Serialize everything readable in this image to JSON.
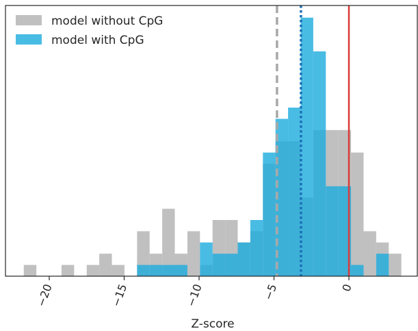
{
  "chart_data": {
    "type": "histogram",
    "xlabel": "Z-score",
    "ylabel": "",
    "xlim": [
      -22.5,
      4.5
    ],
    "ylim": [
      0,
      24
    ],
    "bin_width": 0.84,
    "xticks": [
      -20,
      -15,
      -10,
      -5,
      0
    ],
    "xtick_labels": [
      "−20",
      "−15",
      "−10",
      "−5",
      "0"
    ],
    "legend_position": "top-left",
    "series": [
      {
        "name": "model without CpG",
        "color": "#c0c0c0",
        "bins": [
          {
            "x0": -21.7,
            "count": 1
          },
          {
            "x0": -19.18,
            "count": 1
          },
          {
            "x0": -17.5,
            "count": 1
          },
          {
            "x0": -16.66,
            "count": 2
          },
          {
            "x0": -15.82,
            "count": 1
          },
          {
            "x0": -14.14,
            "count": 4
          },
          {
            "x0": -13.3,
            "count": 2
          },
          {
            "x0": -12.46,
            "count": 6
          },
          {
            "x0": -11.62,
            "count": 2
          },
          {
            "x0": -10.78,
            "count": 4
          },
          {
            "x0": -9.94,
            "count": 1
          },
          {
            "x0": -9.1,
            "count": 5
          },
          {
            "x0": -8.26,
            "count": 5
          },
          {
            "x0": -7.42,
            "count": 3
          },
          {
            "x0": -6.58,
            "count": 4
          },
          {
            "x0": -5.74,
            "count": 10
          },
          {
            "x0": -4.9,
            "count": 12
          },
          {
            "x0": -4.06,
            "count": 12
          },
          {
            "x0": -3.22,
            "count": 7
          },
          {
            "x0": -2.38,
            "count": 13
          },
          {
            "x0": -1.54,
            "count": 13
          },
          {
            "x0": -0.7,
            "count": 13
          },
          {
            "x0": 0.14,
            "count": 11
          },
          {
            "x0": 0.98,
            "count": 4
          },
          {
            "x0": 1.82,
            "count": 3
          },
          {
            "x0": 2.66,
            "count": 2
          }
        ]
      },
      {
        "name": "model with CpG",
        "color": "#1cabdd",
        "bins": [
          {
            "x0": -14.14,
            "count": 1
          },
          {
            "x0": -13.3,
            "count": 1
          },
          {
            "x0": -12.46,
            "count": 1
          },
          {
            "x0": -11.62,
            "count": 1
          },
          {
            "x0": -9.94,
            "count": 3
          },
          {
            "x0": -9.1,
            "count": 2
          },
          {
            "x0": -8.26,
            "count": 2
          },
          {
            "x0": -7.42,
            "count": 3
          },
          {
            "x0": -6.58,
            "count": 5
          },
          {
            "x0": -5.74,
            "count": 11
          },
          {
            "x0": -4.9,
            "count": 14
          },
          {
            "x0": -4.06,
            "count": 15
          },
          {
            "x0": -3.22,
            "count": 23
          },
          {
            "x0": -2.38,
            "count": 20
          },
          {
            "x0": -1.54,
            "count": 8
          },
          {
            "x0": -0.7,
            "count": 8
          },
          {
            "x0": 0.14,
            "count": 1
          },
          {
            "x0": 1.82,
            "count": 2
          }
        ]
      }
    ],
    "vlines": [
      {
        "x": -4.8,
        "style": "dashed",
        "color": "#a8a8a8"
      },
      {
        "x": -3.2,
        "style": "dotted",
        "color": "#1a6fb5"
      },
      {
        "x": 0,
        "style": "solid",
        "color": "#d93b3b"
      }
    ]
  }
}
